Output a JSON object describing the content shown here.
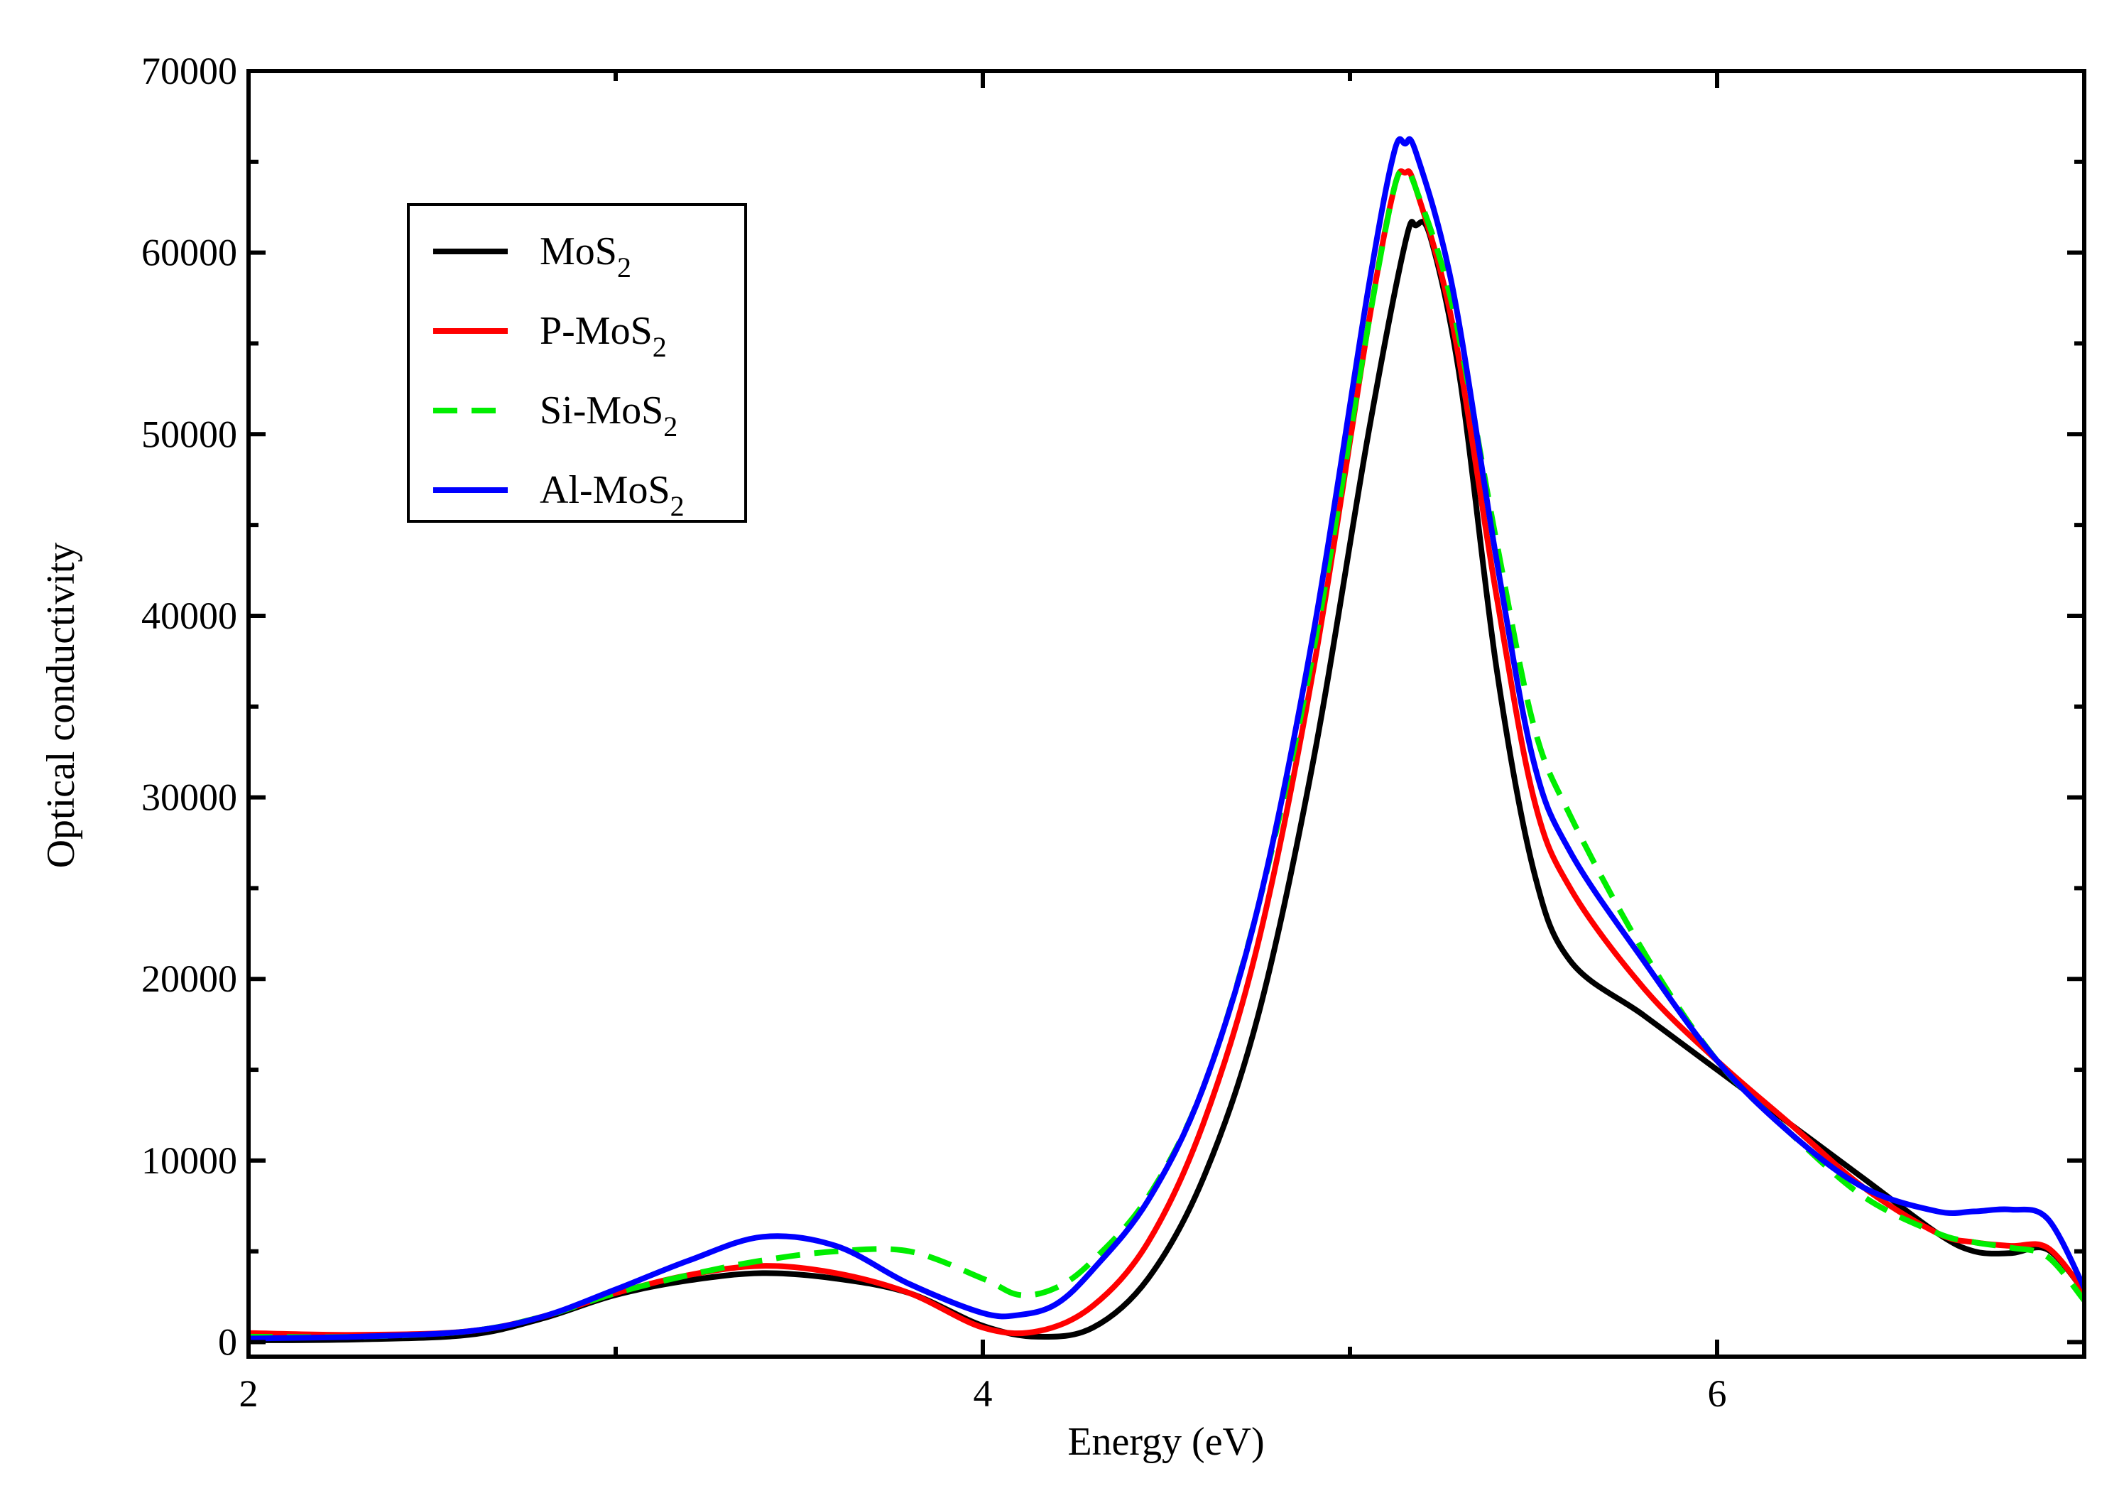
{
  "chart_data": {
    "type": "line",
    "title": "",
    "xlabel": "Energy (eV)",
    "ylabel": "Optical conductivity",
    "xlim": [
      2,
      7
    ],
    "ylim": [
      -800,
      70000
    ],
    "xticks": [
      2,
      4,
      6
    ],
    "xtick_labels": [
      "2",
      "4",
      "6"
    ],
    "x_minor_ticks": [
      3,
      5,
      7
    ],
    "yticks": [
      0,
      10000,
      20000,
      30000,
      40000,
      50000,
      60000,
      70000
    ],
    "ytick_labels": [
      "0",
      "10000",
      "20000",
      "30000",
      "40000",
      "50000",
      "60000",
      "70000"
    ],
    "y_minor_ticks": [
      5000,
      15000,
      25000,
      35000,
      45000,
      55000,
      65000
    ],
    "grid": false,
    "legend_position": "top-left",
    "series": [
      {
        "name": "MoS2",
        "label_main": "MoS",
        "label_sub": "2",
        "color": "#000000",
        "dash": "solid",
        "points": [
          [
            2.0,
            100
          ],
          [
            2.3,
            150
          ],
          [
            2.6,
            400
          ],
          [
            2.8,
            1300
          ],
          [
            3.0,
            2600
          ],
          [
            3.2,
            3400
          ],
          [
            3.4,
            3800
          ],
          [
            3.6,
            3500
          ],
          [
            3.8,
            2700
          ],
          [
            4.0,
            900
          ],
          [
            4.15,
            300
          ],
          [
            4.3,
            800
          ],
          [
            4.45,
            3500
          ],
          [
            4.6,
            9000
          ],
          [
            4.75,
            18000
          ],
          [
            4.9,
            32000
          ],
          [
            5.05,
            50000
          ],
          [
            5.15,
            60500
          ],
          [
            5.18,
            61500
          ],
          [
            5.22,
            60800
          ],
          [
            5.3,
            53000
          ],
          [
            5.4,
            37000
          ],
          [
            5.5,
            26000
          ],
          [
            5.6,
            21000
          ],
          [
            5.8,
            18000
          ],
          [
            6.0,
            15000
          ],
          [
            6.2,
            12000
          ],
          [
            6.4,
            9000
          ],
          [
            6.6,
            6000
          ],
          [
            6.7,
            5000
          ],
          [
            6.8,
            4900
          ],
          [
            6.9,
            5100
          ],
          [
            7.0,
            2800
          ]
        ]
      },
      {
        "name": "P-MoS2",
        "label_main": "P-MoS",
        "label_sub": "2",
        "color": "#ff0000",
        "dash": "solid",
        "points": [
          [
            2.0,
            500
          ],
          [
            2.3,
            400
          ],
          [
            2.6,
            600
          ],
          [
            2.8,
            1400
          ],
          [
            3.0,
            2700
          ],
          [
            3.2,
            3700
          ],
          [
            3.4,
            4200
          ],
          [
            3.6,
            3800
          ],
          [
            3.8,
            2700
          ],
          [
            4.0,
            800
          ],
          [
            4.15,
            600
          ],
          [
            4.3,
            2000
          ],
          [
            4.45,
            5500
          ],
          [
            4.6,
            12000
          ],
          [
            4.75,
            22000
          ],
          [
            4.9,
            37000
          ],
          [
            5.05,
            56000
          ],
          [
            5.12,
            63500
          ],
          [
            5.15,
            64400
          ],
          [
            5.18,
            63500
          ],
          [
            5.28,
            56000
          ],
          [
            5.4,
            41000
          ],
          [
            5.5,
            30000
          ],
          [
            5.6,
            25000
          ],
          [
            5.8,
            19500
          ],
          [
            6.0,
            15500
          ],
          [
            6.2,
            12000
          ],
          [
            6.4,
            8500
          ],
          [
            6.6,
            6000
          ],
          [
            6.7,
            5500
          ],
          [
            6.8,
            5300
          ],
          [
            6.9,
            5200
          ],
          [
            7.0,
            2800
          ]
        ]
      },
      {
        "name": "Si-MoS2",
        "label_main": "Si-MoS",
        "label_sub": "2",
        "color": "#00ee00",
        "dash": "dashed",
        "points": [
          [
            2.0,
            300
          ],
          [
            2.3,
            300
          ],
          [
            2.6,
            600
          ],
          [
            2.8,
            1400
          ],
          [
            3.0,
            2700
          ],
          [
            3.2,
            3700
          ],
          [
            3.4,
            4500
          ],
          [
            3.6,
            5000
          ],
          [
            3.8,
            5000
          ],
          [
            4.0,
            3500
          ],
          [
            4.1,
            2600
          ],
          [
            4.2,
            3000
          ],
          [
            4.3,
            4500
          ],
          [
            4.45,
            8000
          ],
          [
            4.6,
            14000
          ],
          [
            4.75,
            24000
          ],
          [
            4.9,
            38000
          ],
          [
            5.05,
            56000
          ],
          [
            5.12,
            63500
          ],
          [
            5.15,
            64400
          ],
          [
            5.18,
            63500
          ],
          [
            5.28,
            57000
          ],
          [
            5.4,
            44000
          ],
          [
            5.5,
            34000
          ],
          [
            5.6,
            29000
          ],
          [
            5.8,
            21500
          ],
          [
            6.0,
            15500
          ],
          [
            6.2,
            11500
          ],
          [
            6.4,
            8000
          ],
          [
            6.6,
            6000
          ],
          [
            6.7,
            5500
          ],
          [
            6.8,
            5200
          ],
          [
            6.9,
            4700
          ],
          [
            7.0,
            2300
          ]
        ]
      },
      {
        "name": "Al-MoS2",
        "label_main": "Al-MoS",
        "label_sub": "2",
        "color": "#0000ff",
        "dash": "solid",
        "points": [
          [
            2.0,
            200
          ],
          [
            2.3,
            300
          ],
          [
            2.6,
            600
          ],
          [
            2.8,
            1400
          ],
          [
            3.0,
            2900
          ],
          [
            3.2,
            4500
          ],
          [
            3.4,
            5800
          ],
          [
            3.6,
            5300
          ],
          [
            3.8,
            3200
          ],
          [
            4.0,
            1600
          ],
          [
            4.1,
            1500
          ],
          [
            4.2,
            2100
          ],
          [
            4.3,
            4000
          ],
          [
            4.45,
            7800
          ],
          [
            4.6,
            14000
          ],
          [
            4.75,
            24000
          ],
          [
            4.9,
            39000
          ],
          [
            5.05,
            58000
          ],
          [
            5.12,
            65500
          ],
          [
            5.15,
            66000
          ],
          [
            5.18,
            65500
          ],
          [
            5.28,
            58000
          ],
          [
            5.4,
            43000
          ],
          [
            5.5,
            32000
          ],
          [
            5.6,
            27000
          ],
          [
            5.8,
            21000
          ],
          [
            6.0,
            15500
          ],
          [
            6.2,
            11500
          ],
          [
            6.4,
            8500
          ],
          [
            6.6,
            7200
          ],
          [
            6.7,
            7200
          ],
          [
            6.8,
            7300
          ],
          [
            6.9,
            6800
          ],
          [
            7.0,
            3000
          ]
        ]
      }
    ]
  }
}
